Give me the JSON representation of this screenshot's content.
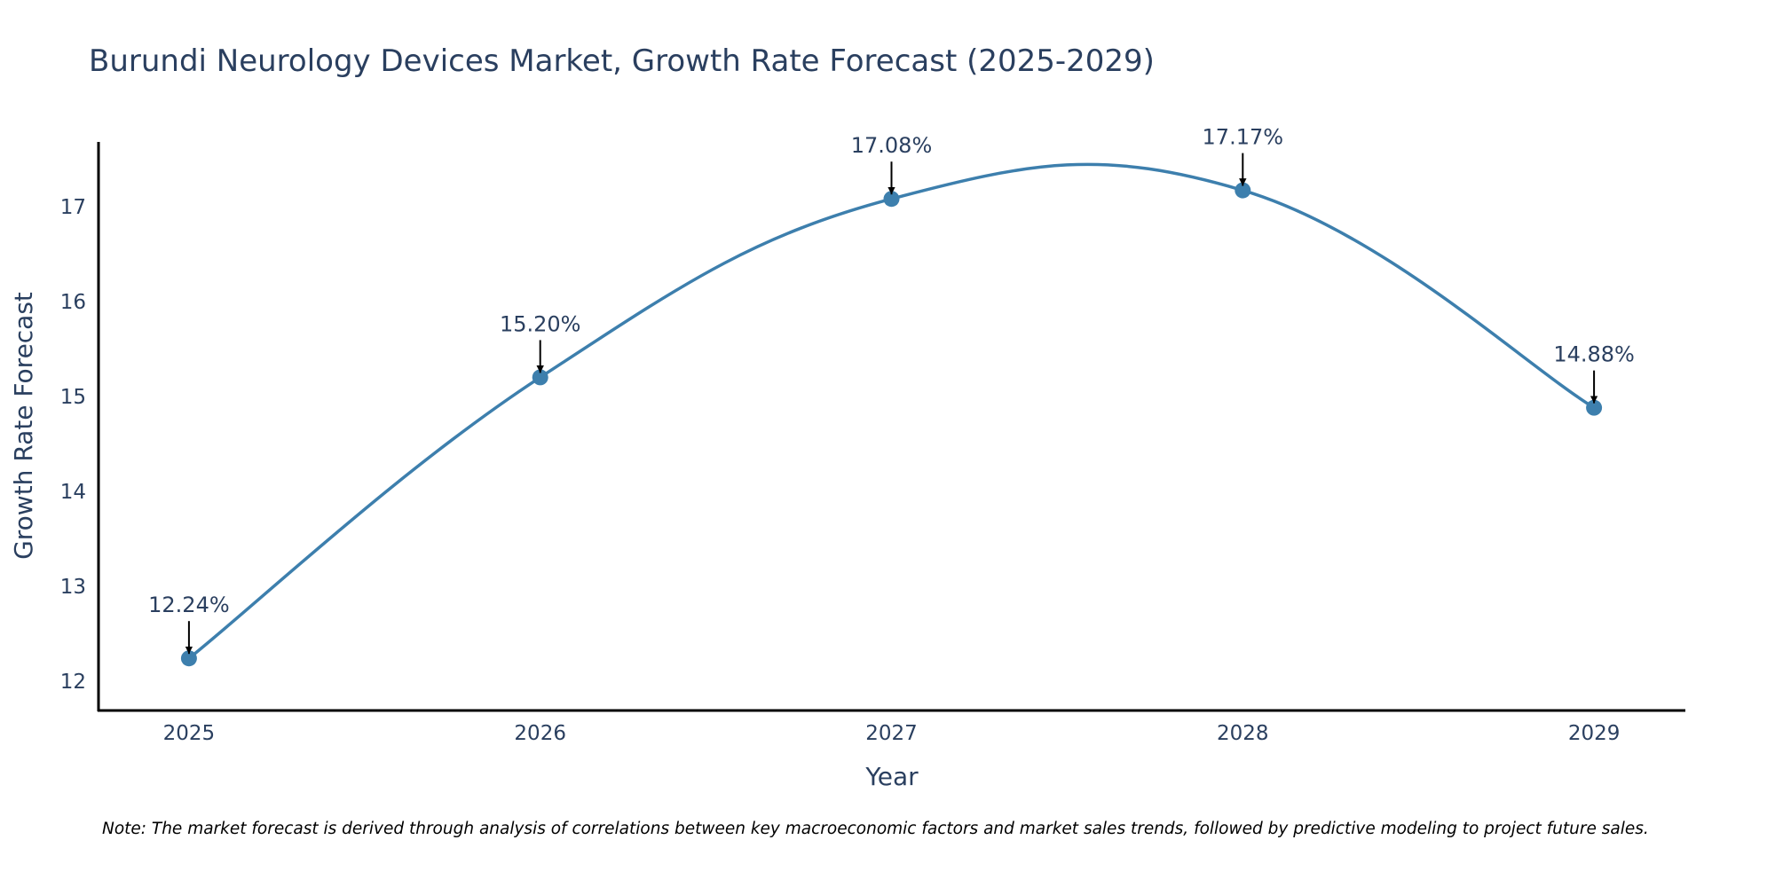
{
  "chart_data": {
    "type": "line",
    "title": "Burundi Neurology Devices Market, Growth Rate Forecast (2025-2029)",
    "xlabel": "Year",
    "ylabel": "Growth Rate Forecast",
    "categories": [
      "2025",
      "2026",
      "2027",
      "2028",
      "2029"
    ],
    "series": [
      {
        "name": "Growth Rate Forecast",
        "values": [
          12.24,
          15.2,
          17.08,
          17.17,
          14.88
        ],
        "labels": [
          "12.24%",
          "15.20%",
          "17.08%",
          "17.17%",
          "14.88%"
        ],
        "color": "#3d7fad",
        "line_shape": "spline"
      }
    ],
    "yticks": [
      12,
      13,
      14,
      15,
      16,
      17
    ],
    "ylim": [
      11.7,
      17.68
    ],
    "xlim": [
      -0.26,
      4.26
    ],
    "grid": false,
    "legend": "none",
    "note": "Note: The market forecast is derived through analysis of correlations between key macroeconomic factors and market sales trends, followed by predictive modeling to project future sales."
  },
  "colors": {
    "line": "#3d7fad",
    "marker": "#3d7fad",
    "axis": "#000000",
    "text": "#2a3f5f",
    "arrow": "#000000"
  }
}
